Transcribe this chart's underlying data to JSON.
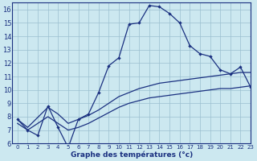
{
  "title": "Graphe des températures (°c)",
  "bg_color": "#cce8f0",
  "grid_color": "#9bbfcf",
  "line_color": "#1a3080",
  "xlim": [
    -0.5,
    23
  ],
  "ylim": [
    6,
    16.5
  ],
  "xticks": [
    0,
    1,
    2,
    3,
    4,
    5,
    6,
    7,
    8,
    9,
    10,
    11,
    12,
    13,
    14,
    15,
    16,
    17,
    18,
    19,
    20,
    21,
    22,
    23
  ],
  "yticks": [
    6,
    7,
    8,
    9,
    10,
    11,
    12,
    13,
    14,
    15,
    16
  ],
  "line1_x": [
    0,
    1,
    2,
    3,
    4,
    5,
    6,
    7,
    8,
    9,
    10,
    11,
    12,
    13,
    14,
    15,
    16,
    17,
    18,
    19,
    20,
    21,
    22,
    23
  ],
  "line1_y": [
    7.8,
    7.0,
    6.6,
    8.8,
    7.2,
    5.7,
    7.8,
    8.2,
    9.8,
    11.8,
    12.4,
    14.9,
    15.0,
    16.3,
    16.2,
    15.7,
    15.0,
    13.3,
    12.7,
    12.5,
    11.5,
    11.2,
    11.7,
    10.2
  ],
  "line2_x": [
    0,
    1,
    3,
    4,
    5,
    6,
    7,
    8,
    9,
    10,
    11,
    12,
    13,
    14,
    15,
    16,
    17,
    18,
    19,
    20,
    21,
    22,
    23
  ],
  "line2_y": [
    7.8,
    7.2,
    8.7,
    8.2,
    7.5,
    7.8,
    8.1,
    8.5,
    9.0,
    9.5,
    9.8,
    10.1,
    10.3,
    10.5,
    10.6,
    10.7,
    10.8,
    10.9,
    11.0,
    11.1,
    11.2,
    11.3,
    11.3
  ],
  "line3_x": [
    0,
    1,
    3,
    4,
    5,
    6,
    7,
    8,
    9,
    10,
    11,
    12,
    13,
    14,
    15,
    16,
    17,
    18,
    19,
    20,
    21,
    22,
    23
  ],
  "line3_y": [
    7.5,
    7.0,
    8.0,
    7.5,
    7.0,
    7.2,
    7.5,
    7.9,
    8.3,
    8.7,
    9.0,
    9.2,
    9.4,
    9.5,
    9.6,
    9.7,
    9.8,
    9.9,
    10.0,
    10.1,
    10.1,
    10.2,
    10.3
  ]
}
